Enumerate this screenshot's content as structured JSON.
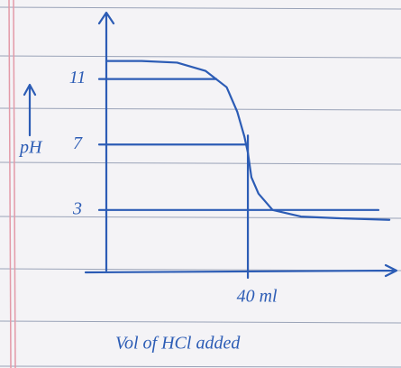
{
  "chart_data": {
    "type": "line",
    "y_label": "pH",
    "x_label": "Vol of HCl added",
    "x": [
      0,
      10,
      20,
      28,
      34,
      37,
      39,
      40,
      41,
      43,
      47,
      55,
      65,
      80
    ],
    "series": [
      {
        "color": "#2c5cb5",
        "values": [
          12.1,
          12.1,
          12,
          11.5,
          10.5,
          9,
          7.5,
          6.5,
          5,
          4,
          3,
          2.6,
          2.5,
          2.4
        ]
      }
    ],
    "xlim": [
      0,
      82
    ],
    "ylim": [
      -0.7,
      15
    ],
    "xticks": [
      {
        "value": 40,
        "label": "40 ml"
      }
    ],
    "yticks": [
      3,
      7,
      11
    ]
  }
}
